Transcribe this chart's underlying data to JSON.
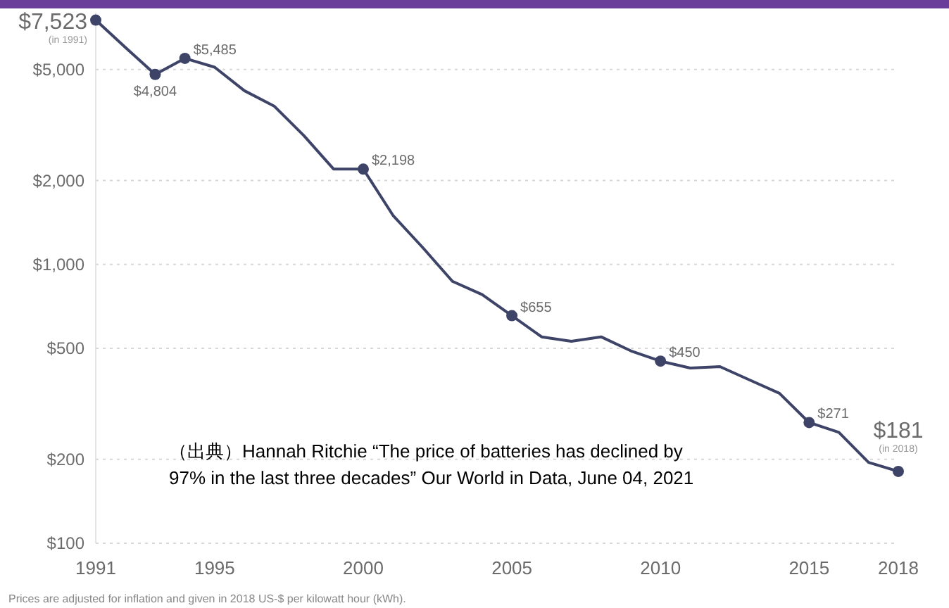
{
  "chart_data": {
    "type": "line",
    "x": [
      1991,
      1992,
      1993,
      1994,
      1995,
      1996,
      1997,
      1998,
      1999,
      2000,
      2001,
      2002,
      2003,
      2004,
      2005,
      2006,
      2007,
      2008,
      2009,
      2010,
      2011,
      2012,
      2013,
      2014,
      2015,
      2016,
      2017,
      2018
    ],
    "series": [
      {
        "color": "#3e4468",
        "values": [
          7523,
          6000,
          4804,
          5485,
          5100,
          4200,
          3700,
          2900,
          2200,
          2198,
          1500,
          1150,
          870,
          780,
          655,
          550,
          530,
          550,
          490,
          450,
          425,
          430,
          385,
          345,
          271,
          250,
          195,
          181
        ]
      },
      {
        "type": "scatter",
        "color": "#3e4468",
        "x": [
          1991,
          1993,
          1994,
          2000,
          2005,
          2010,
          2015,
          2018
        ],
        "values": [
          7523,
          4804,
          5485,
          2198,
          655,
          450,
          271,
          181
        ],
        "value_labels": [
          "$7,523",
          "$4,804",
          "$5,485",
          "$2,198",
          "$655",
          "$450",
          "$271",
          "$181"
        ]
      }
    ],
    "log": true,
    "ylim": [
      100,
      8000
    ],
    "yticks": [
      {
        "value": 100,
        "label": "$100"
      },
      {
        "value": 200,
        "label": "$200"
      },
      {
        "value": 500,
        "label": "$500"
      },
      {
        "value": 1000,
        "label": "$1,000"
      },
      {
        "value": 2000,
        "label": "$2,000"
      },
      {
        "value": 5000,
        "label": "$5,000"
      }
    ],
    "xlim": [
      1991,
      2018
    ],
    "xticks": [
      1991,
      1995,
      2000,
      2005,
      2010,
      2015,
      2018
    ],
    "grid": "y",
    "line_style": "solid",
    "annotations": [
      {
        "text": "(in 1991)",
        "x": 1991,
        "y": 7523
      },
      {
        "text": "(in 2018)",
        "x": 2018,
        "y": 181
      },
      "（出典）Hannah Ritchie “The price of batteries has declined by 97% in the last three decades” Our World in Data, June 04, 2021",
      "Prices are adjusted for inflation and given in 2018 US-$ per kilowatt hour (kWh)."
    ]
  }
}
